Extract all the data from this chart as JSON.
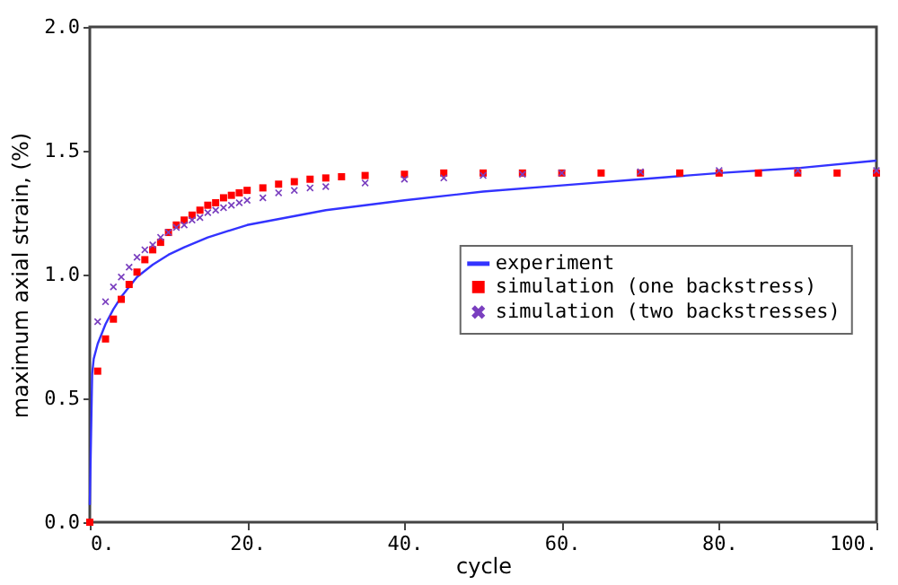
{
  "chart_data": {
    "type": "scatter",
    "xlabel": "cycle",
    "ylabel": "maximum axial strain, (%)",
    "xlim": [
      0,
      100
    ],
    "ylim": [
      0,
      2
    ],
    "xticks": [
      {
        "value": 0,
        "label": "0."
      },
      {
        "value": 20,
        "label": "20."
      },
      {
        "value": 40,
        "label": "40."
      },
      {
        "value": 60,
        "label": "60."
      },
      {
        "value": 80,
        "label": "80."
      },
      {
        "value": 100,
        "label": "100."
      }
    ],
    "yticks": [
      {
        "value": 0,
        "label": "0.0"
      },
      {
        "value": 0.5,
        "label": "0.5"
      },
      {
        "value": 1,
        "label": "1.0"
      },
      {
        "value": 1.5,
        "label": "1.5"
      },
      {
        "value": 2,
        "label": "2.0"
      }
    ],
    "grid": false,
    "legend": "right",
    "series": [
      {
        "name": "experiment",
        "type": "line",
        "color": "#3333ff",
        "x": [
          0,
          0.3,
          0.5,
          1,
          2,
          3,
          4,
          5,
          6,
          8,
          10,
          12,
          15,
          20,
          25,
          30,
          40,
          50,
          60,
          70,
          80,
          90,
          100
        ],
        "values": [
          0.07,
          0.6,
          0.66,
          0.72,
          0.8,
          0.86,
          0.91,
          0.95,
          0.99,
          1.04,
          1.08,
          1.11,
          1.15,
          1.2,
          1.23,
          1.26,
          1.3,
          1.335,
          1.36,
          1.385,
          1.41,
          1.43,
          1.46
        ]
      },
      {
        "name": "simulation (one backstress)",
        "marker": "square",
        "color": "#ff0000",
        "x": [
          0,
          1,
          2,
          3,
          4,
          5,
          6,
          7,
          8,
          9,
          10,
          11,
          12,
          13,
          14,
          15,
          16,
          17,
          18,
          19,
          20,
          22,
          24,
          26,
          28,
          30,
          32,
          35,
          40,
          45,
          50,
          55,
          60,
          65,
          70,
          75,
          80,
          85,
          90,
          95,
          100
        ],
        "values": [
          0,
          0.61,
          0.74,
          0.82,
          0.9,
          0.96,
          1.01,
          1.06,
          1.1,
          1.13,
          1.17,
          1.2,
          1.22,
          1.24,
          1.26,
          1.28,
          1.29,
          1.31,
          1.32,
          1.33,
          1.34,
          1.35,
          1.365,
          1.375,
          1.385,
          1.39,
          1.395,
          1.4,
          1.405,
          1.41,
          1.41,
          1.41,
          1.41,
          1.41,
          1.41,
          1.41,
          1.41,
          1.41,
          1.41,
          1.41,
          1.41
        ]
      },
      {
        "name": "simulation (two backstresses)",
        "marker": "cross",
        "color": "#7a3fbf",
        "x": [
          1,
          2,
          3,
          4,
          5,
          6,
          7,
          8,
          9,
          10,
          11,
          12,
          13,
          14,
          15,
          16,
          17,
          18,
          19,
          20,
          22,
          24,
          26,
          28,
          30,
          35,
          40,
          45,
          50,
          55,
          60,
          70,
          80,
          90,
          100
        ],
        "values": [
          0.81,
          0.89,
          0.95,
          0.99,
          1.03,
          1.07,
          1.1,
          1.12,
          1.15,
          1.17,
          1.19,
          1.2,
          1.22,
          1.23,
          1.25,
          1.26,
          1.27,
          1.28,
          1.29,
          1.3,
          1.31,
          1.33,
          1.34,
          1.35,
          1.355,
          1.37,
          1.385,
          1.39,
          1.4,
          1.405,
          1.41,
          1.415,
          1.42,
          1.42,
          1.42
        ]
      }
    ]
  }
}
